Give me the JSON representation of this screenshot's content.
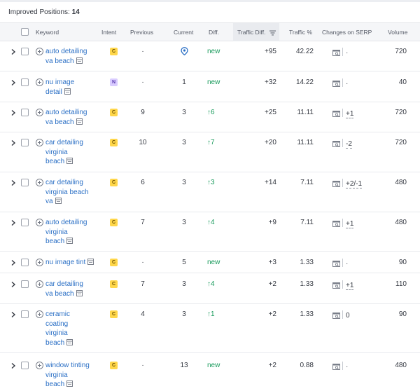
{
  "summary": {
    "label": "Improved Positions:",
    "count": "14"
  },
  "columns": {
    "keyword": "Keyword",
    "intent": "Intent",
    "previous": "Previous",
    "current": "Current",
    "diff": "Diff.",
    "traffic_diff": "Traffic Diff.",
    "traffic_pct": "Traffic %",
    "changes_on_serp": "Changes on SERP",
    "volume": "Volume"
  },
  "colors": {
    "link": "#2a6fc5",
    "positive": "#179a5b",
    "intent_c": "#ffd74b",
    "intent_n": "#d9ccff"
  },
  "rows": [
    {
      "keyword": [
        "auto detailing",
        "va beach"
      ],
      "intent": "C",
      "previous": "·",
      "current": "",
      "current_icon": "map-pin-icon",
      "diff": "new",
      "traffic_diff": "+95",
      "traffic_pct": "42.22",
      "serp_change": "·",
      "volume": "720"
    },
    {
      "keyword": [
        "nu image",
        "detail"
      ],
      "intent": "N",
      "previous": "·",
      "current": "1",
      "diff": "new",
      "traffic_diff": "+32",
      "traffic_pct": "14.22",
      "serp_change": "·",
      "volume": "40"
    },
    {
      "keyword": [
        "auto detailing",
        "va beach"
      ],
      "intent": "C",
      "previous": "9",
      "current": "3",
      "diff": "↑6",
      "traffic_diff": "+25",
      "traffic_pct": "11.11",
      "serp_change": "+1",
      "volume": "720"
    },
    {
      "keyword": [
        "car detailing",
        "virginia",
        "beach"
      ],
      "intent": "C",
      "previous": "10",
      "current": "3",
      "diff": "↑7",
      "traffic_diff": "+20",
      "traffic_pct": "11.11",
      "serp_change": "-2",
      "volume": "720"
    },
    {
      "keyword": [
        "car detailing",
        "virginia beach",
        "va"
      ],
      "intent": "C",
      "previous": "6",
      "current": "3",
      "diff": "↑3",
      "traffic_diff": "+14",
      "traffic_pct": "7.11",
      "serp_change": "+2/-1",
      "volume": "480"
    },
    {
      "keyword": [
        "auto detailing",
        "virginia",
        "beach"
      ],
      "intent": "C",
      "previous": "7",
      "current": "3",
      "diff": "↑4",
      "traffic_diff": "+9",
      "traffic_pct": "7.11",
      "serp_change": "+1",
      "volume": "480"
    },
    {
      "keyword": [
        "nu image tint"
      ],
      "intent": "C",
      "previous": "·",
      "current": "5",
      "diff": "new",
      "traffic_diff": "+3",
      "traffic_pct": "1.33",
      "serp_change": "·",
      "volume": "90"
    },
    {
      "keyword": [
        "car detailing",
        "va beach"
      ],
      "intent": "C",
      "previous": "7",
      "current": "3",
      "diff": "↑4",
      "traffic_diff": "+2",
      "traffic_pct": "1.33",
      "serp_change": "+1",
      "volume": "110"
    },
    {
      "keyword": [
        "ceramic",
        "coating",
        "virginia",
        "beach"
      ],
      "intent": "C",
      "previous": "4",
      "current": "3",
      "diff": "↑1",
      "traffic_diff": "+2",
      "traffic_pct": "1.33",
      "serp_change": "0",
      "volume": "90"
    },
    {
      "keyword": [
        "window tinting",
        "virginia",
        "beach"
      ],
      "intent": "C",
      "previous": "·",
      "current": "13",
      "diff": "new",
      "traffic_diff": "+2",
      "traffic_pct": "0.88",
      "serp_change": "·",
      "volume": "480"
    }
  ]
}
